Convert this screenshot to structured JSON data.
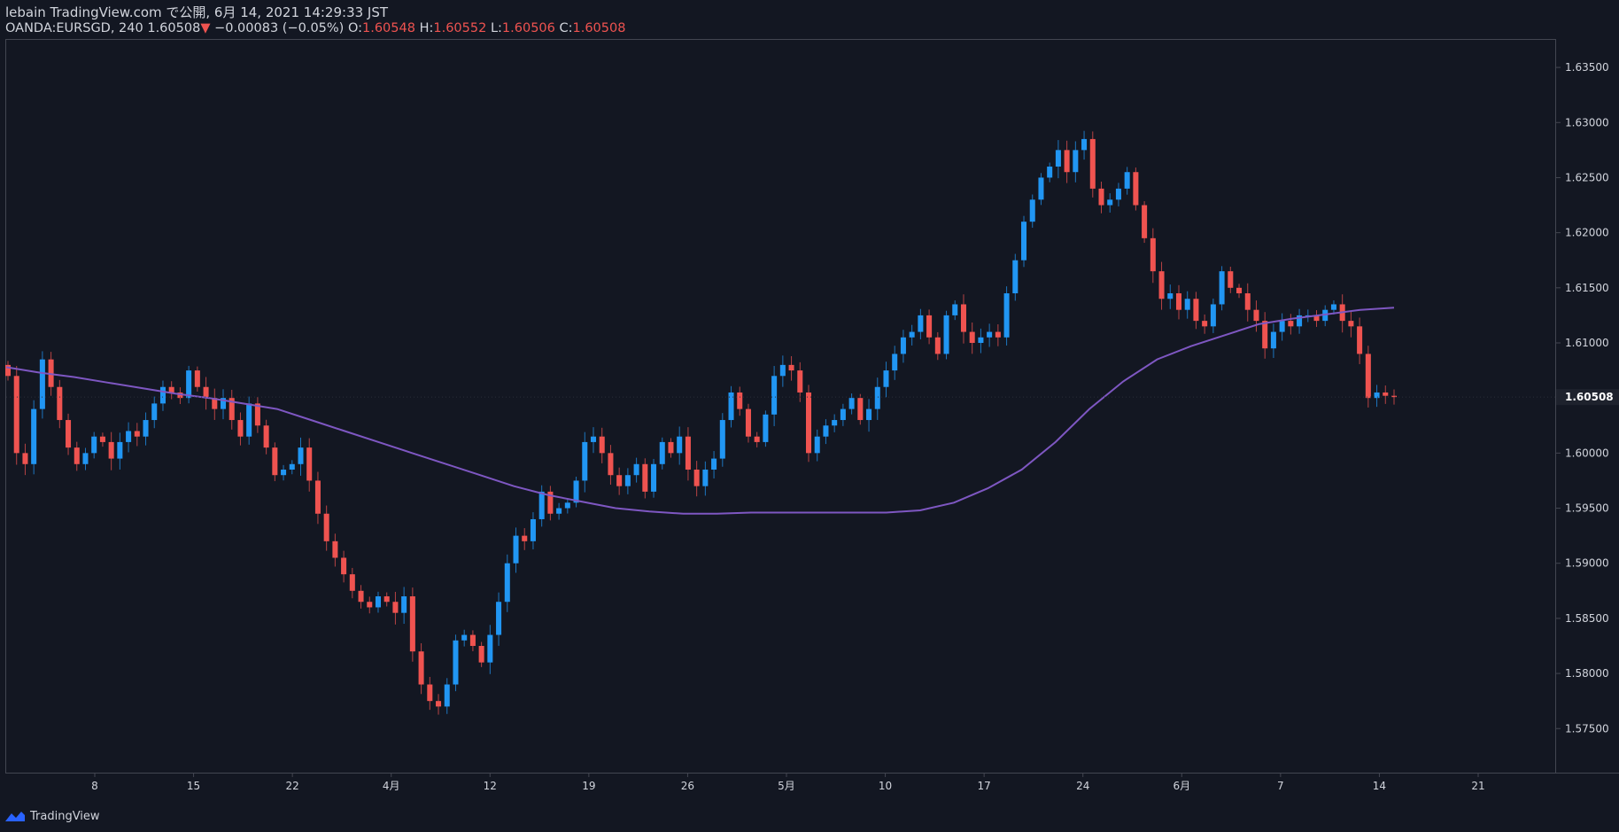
{
  "header": {
    "publish_line": "lebain TradingView.com で公開, 6月 14, 2021 14:29:33 JST",
    "symbol": "OANDA:EURSGD, 240",
    "last_price": "1.60508",
    "change": "−0.00083 (−0.05%)",
    "o_label": "O:",
    "o_value": "1.60548",
    "h_label": "H:",
    "h_value": "1.60552",
    "l_label": "L:",
    "l_value": "1.60506",
    "c_label": "C:",
    "c_value": "1.60508"
  },
  "brand": {
    "label": "TradingView"
  },
  "colors": {
    "background": "#131722",
    "up": "#2196f3",
    "down": "#ef5350",
    "ma": "#7e57c2",
    "axis_text": "#d1d4dc",
    "border": "#434651"
  },
  "chart_data": {
    "type": "candlestick",
    "title": "OANDA:EURSGD, 240",
    "ylim": [
      1.571,
      1.6375
    ],
    "y_ticks": [
      "1.63500",
      "1.63000",
      "1.62500",
      "1.62000",
      "1.61500",
      "1.61000",
      "1.60500",
      "1.60000",
      "1.59500",
      "1.59000",
      "1.58500",
      "1.58000",
      "1.57500"
    ],
    "x_ticks": [
      "8",
      "15",
      "22",
      "4月",
      "12",
      "19",
      "26",
      "5月",
      "10",
      "17",
      "24",
      "6月",
      "7",
      "14",
      "21"
    ],
    "last_price_label": "1.60508",
    "series": [
      {
        "name": "EURSGD close (approx.)",
        "values": [
          1.607,
          1.6,
          1.599,
          1.604,
          1.6085,
          1.606,
          1.603,
          1.6005,
          1.599,
          1.6,
          1.6015,
          1.601,
          1.5995,
          1.601,
          1.602,
          1.6015,
          1.603,
          1.6045,
          1.606,
          1.6055,
          1.605,
          1.6075,
          1.606,
          1.605,
          1.604,
          1.605,
          1.603,
          1.6015,
          1.6045,
          1.6025,
          1.6005,
          1.598,
          1.5985,
          1.599,
          1.6005,
          1.5975,
          1.5945,
          1.592,
          1.5905,
          1.589,
          1.5875,
          1.5865,
          1.586,
          1.587,
          1.5865,
          1.5855,
          1.587,
          1.582,
          1.579,
          1.5775,
          1.577,
          1.579,
          1.583,
          1.5835,
          1.5825,
          1.581,
          1.5835,
          1.5865,
          1.59,
          1.5925,
          1.592,
          1.594,
          1.5965,
          1.5945,
          1.595,
          1.5955,
          1.5975,
          1.601,
          1.6015,
          1.6,
          1.598,
          1.597,
          1.598,
          1.599,
          1.5965,
          1.599,
          1.601,
          1.6,
          1.6015,
          1.5985,
          1.597,
          1.5985,
          1.5995,
          1.603,
          1.6055,
          1.604,
          1.6015,
          1.601,
          1.6035,
          1.607,
          1.608,
          1.6075,
          1.6055,
          1.6,
          1.6015,
          1.6025,
          1.603,
          1.604,
          1.605,
          1.603,
          1.604,
          1.606,
          1.6075,
          1.609,
          1.6105,
          1.611,
          1.6125,
          1.6105,
          1.609,
          1.6125,
          1.6135,
          1.611,
          1.61,
          1.6105,
          1.611,
          1.6105,
          1.6145,
          1.6175,
          1.621,
          1.623,
          1.625,
          1.626,
          1.6275,
          1.6255,
          1.6275,
          1.6285,
          1.624,
          1.6225,
          1.623,
          1.624,
          1.6255,
          1.6225,
          1.6195,
          1.6165,
          1.614,
          1.6145,
          1.613,
          1.614,
          1.612,
          1.6115,
          1.6135,
          1.6165,
          1.615,
          1.6145,
          1.613,
          1.612,
          1.6095,
          1.611,
          1.612,
          1.6115,
          1.6125,
          1.6125,
          1.612,
          1.613,
          1.6135,
          1.612,
          1.6115,
          1.609,
          1.605,
          1.6055,
          1.6052,
          1.60508
        ]
      },
      {
        "name": "Moving average",
        "values": [
          1.6078,
          1.6073,
          1.6069,
          1.6064,
          1.6059,
          1.6054,
          1.605,
          1.6045,
          1.604,
          1.603,
          1.602,
          1.601,
          1.6,
          1.599,
          1.598,
          1.597,
          1.5962,
          1.5956,
          1.595,
          1.5947,
          1.5945,
          1.5945,
          1.5946,
          1.5946,
          1.5946,
          1.5946,
          1.5946,
          1.5948,
          1.5955,
          1.5968,
          1.5985,
          1.601,
          1.604,
          1.6065,
          1.6085,
          1.6097,
          1.6107,
          1.6117,
          1.6122,
          1.6126,
          1.613,
          1.6132
        ]
      }
    ]
  }
}
